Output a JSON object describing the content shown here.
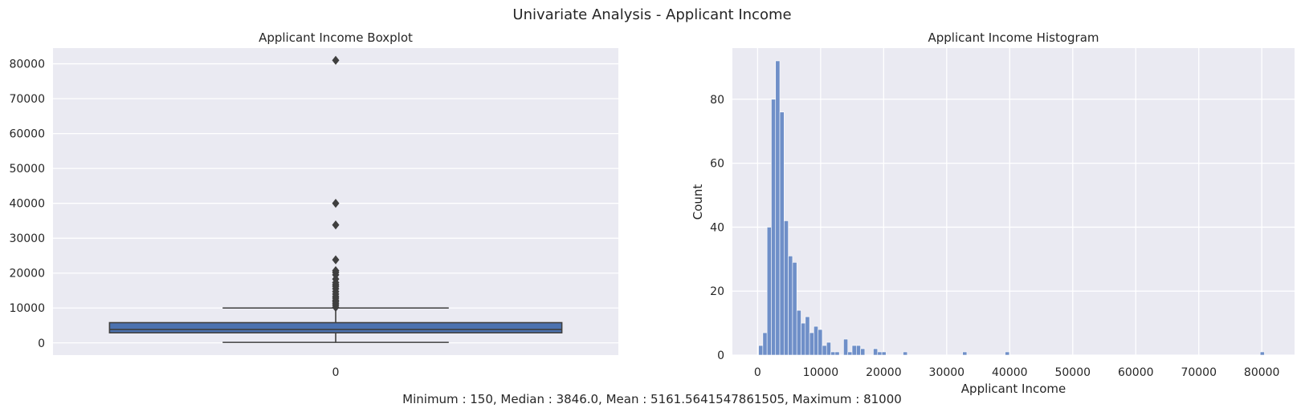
{
  "figure": {
    "suptitle": "Univariate Analysis - Applicant Income",
    "caption": "Minimum : 150, Median : 3846.0, Mean : 5161.5641547861505, Maximum : 81000"
  },
  "colors": {
    "panel_bg": "#eaeaf2",
    "grid": "#ffffff",
    "box_fill": "#4c72b0",
    "box_edge": "#3f3f3f",
    "hist_bar": "#6f8fc8",
    "text": "#262626"
  },
  "chart_data": [
    {
      "type": "boxplot",
      "title": "Applicant Income Boxplot",
      "xlabel": "",
      "ylabel": "",
      "categories": [
        "0"
      ],
      "ylim": [
        -3500,
        84500
      ],
      "yticks": [
        0,
        10000,
        20000,
        30000,
        40000,
        50000,
        60000,
        70000,
        80000
      ],
      "grid": true,
      "box": {
        "min": 150,
        "q1": 2900,
        "median": 3846,
        "q3": 5800,
        "whisker_high": 10000
      },
      "outliers": [
        10200,
        10800,
        11300,
        11800,
        12200,
        12800,
        13300,
        14000,
        14700,
        15500,
        16200,
        16700,
        17300,
        18300,
        19500,
        20200,
        20700,
        23800,
        33800,
        39999,
        81000
      ]
    },
    {
      "type": "bar",
      "title": "Applicant Income Histogram",
      "xlabel": "Applicant Income",
      "ylabel": "Count",
      "xlim": [
        -4000,
        85200
      ],
      "ylim": [
        0,
        96
      ],
      "xticks": [
        0,
        10000,
        20000,
        30000,
        40000,
        50000,
        60000,
        70000,
        80000
      ],
      "yticks": [
        0,
        20,
        40,
        60,
        80
      ],
      "grid": true,
      "bin_start": 150,
      "bin_width": 674.5,
      "counts": [
        3,
        7,
        40,
        80,
        92,
        76,
        42,
        31,
        29,
        14,
        10,
        12,
        7,
        9,
        8,
        3,
        4,
        1,
        1,
        0,
        5,
        1,
        3,
        3,
        2,
        0,
        0,
        2,
        1,
        1,
        0,
        0,
        0,
        0,
        1,
        0,
        0,
        0,
        0,
        0,
        0,
        0,
        0,
        0,
        0,
        0,
        0,
        0,
        1,
        0,
        0,
        0,
        0,
        0,
        0,
        0,
        0,
        0,
        1,
        0,
        0,
        0,
        0,
        0,
        0,
        0,
        0,
        0,
        0,
        0,
        0,
        0,
        0,
        0,
        0,
        0,
        0,
        0,
        0,
        0,
        0,
        0,
        0,
        0,
        0,
        0,
        0,
        0,
        0,
        0,
        0,
        0,
        0,
        0,
        0,
        0,
        0,
        0,
        0,
        0,
        0,
        0,
        0,
        0,
        0,
        0,
        0,
        0,
        0,
        0,
        0,
        0,
        0,
        0,
        0,
        0,
        0,
        0,
        1
      ]
    }
  ]
}
